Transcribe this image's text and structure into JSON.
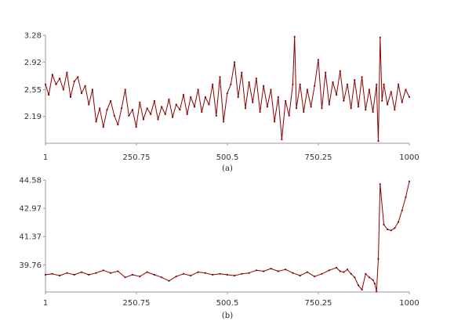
{
  "colors": {
    "series": "#8b0000",
    "axis": "#999999",
    "text": "#333333"
  },
  "chart_data": [
    {
      "type": "line",
      "caption": "(a)",
      "x_ticks": [
        "1",
        "250.75",
        "500.5",
        "750.25",
        "1000"
      ],
      "y_ticks": [
        "2.19",
        "2.55",
        "2.92",
        "3.28"
      ],
      "xlim": [
        1,
        1000
      ],
      "ylim": [
        1.83,
        3.28
      ],
      "grid": false,
      "series": [
        {
          "x": [
            1,
            10,
            20,
            30,
            40,
            50,
            60,
            70,
            80,
            90,
            100,
            110,
            120,
            130,
            140,
            150,
            160,
            170,
            180,
            190,
            200,
            210,
            220,
            230,
            240,
            250,
            260,
            270,
            280,
            290,
            300,
            310,
            320,
            330,
            340,
            350,
            360,
            370,
            380,
            390,
            400,
            410,
            420,
            430,
            440,
            450,
            460,
            470,
            480,
            490,
            500,
            510,
            520,
            530,
            540,
            550,
            560,
            570,
            580,
            590,
            600,
            610,
            620,
            630,
            640,
            650,
            660,
            670,
            680,
            685,
            690,
            700,
            710,
            720,
            730,
            740,
            750,
            760,
            770,
            780,
            790,
            800,
            810,
            820,
            830,
            840,
            850,
            860,
            870,
            880,
            890,
            900,
            910,
            915,
            920,
            925,
            930,
            940,
            950,
            960,
            970,
            980,
            990,
            1000
          ],
          "y": [
            2.62,
            2.48,
            2.75,
            2.62,
            2.7,
            2.55,
            2.78,
            2.45,
            2.66,
            2.72,
            2.5,
            2.6,
            2.35,
            2.55,
            2.12,
            2.3,
            2.05,
            2.28,
            2.4,
            2.2,
            2.08,
            2.3,
            2.55,
            2.2,
            2.28,
            2.05,
            2.38,
            2.15,
            2.3,
            2.22,
            2.4,
            2.15,
            2.32,
            2.22,
            2.42,
            2.18,
            2.35,
            2.28,
            2.48,
            2.22,
            2.45,
            2.32,
            2.55,
            2.25,
            2.45,
            2.35,
            2.62,
            2.2,
            2.72,
            2.12,
            2.5,
            2.62,
            2.92,
            2.45,
            2.78,
            2.3,
            2.65,
            2.38,
            2.7,
            2.25,
            2.6,
            2.32,
            2.55,
            2.12,
            2.45,
            1.88,
            2.4,
            2.2,
            2.62,
            3.26,
            2.3,
            2.62,
            2.25,
            2.55,
            2.32,
            2.6,
            2.95,
            2.3,
            2.78,
            2.35,
            2.65,
            2.48,
            2.8,
            2.4,
            2.62,
            2.3,
            2.68,
            2.32,
            2.72,
            2.28,
            2.55,
            2.25,
            2.62,
            1.86,
            3.25,
            2.4,
            2.62,
            2.35,
            2.52,
            2.28,
            2.62,
            2.38,
            2.55,
            2.45
          ]
        }
      ]
    },
    {
      "type": "line",
      "caption": "(b)",
      "x_ticks": [
        "1",
        "250.75",
        "500.5",
        "750.25",
        "1000"
      ],
      "y_ticks": [
        "39.76",
        "41.37",
        "42.97",
        "44.58"
      ],
      "xlim": [
        1,
        1000
      ],
      "ylim": [
        38.22,
        44.58
      ],
      "grid": false,
      "series": [
        {
          "x": [
            1,
            20,
            40,
            60,
            80,
            100,
            120,
            140,
            160,
            180,
            200,
            220,
            240,
            260,
            280,
            300,
            320,
            340,
            360,
            380,
            400,
            420,
            440,
            460,
            480,
            500,
            520,
            540,
            560,
            580,
            600,
            620,
            640,
            660,
            680,
            700,
            720,
            740,
            760,
            780,
            800,
            810,
            820,
            830,
            840,
            850,
            860,
            870,
            880,
            890,
            900,
            905,
            910,
            915,
            920,
            930,
            940,
            950,
            960,
            970,
            980,
            990,
            1000
          ],
          "y": [
            39.2,
            39.25,
            39.15,
            39.3,
            39.2,
            39.35,
            39.2,
            39.3,
            39.45,
            39.3,
            39.4,
            39.05,
            39.2,
            39.1,
            39.35,
            39.2,
            39.05,
            38.85,
            39.1,
            39.25,
            39.15,
            39.35,
            39.3,
            39.2,
            39.25,
            39.2,
            39.15,
            39.25,
            39.3,
            39.45,
            39.4,
            39.55,
            39.4,
            39.5,
            39.3,
            39.15,
            39.35,
            39.1,
            39.25,
            39.45,
            39.6,
            39.4,
            39.35,
            39.5,
            39.25,
            39.05,
            38.6,
            38.35,
            39.25,
            39.05,
            38.9,
            38.7,
            38.25,
            40.1,
            44.35,
            42.05,
            41.78,
            41.72,
            41.85,
            42.2,
            42.85,
            43.6,
            44.5
          ]
        }
      ]
    }
  ]
}
